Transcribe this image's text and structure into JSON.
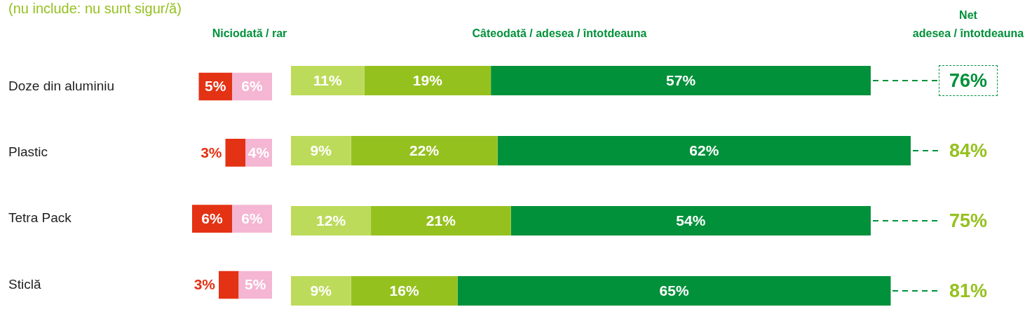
{
  "chart_data": [
    {
      "type": "bar",
      "orientation": "horizontal",
      "stacked": true,
      "title": "Niciodată / rar",
      "subtitle": "(nu include: nu sunt sigur/ă)",
      "categories": [
        "Doze din aluminiu",
        "Plastic",
        "Tetra Pack",
        "Sticlă"
      ],
      "series": [
        {
          "color": "#f4b6d2",
          "values": [
            6,
            4,
            6,
            5
          ],
          "value_labels": [
            "6%",
            "4%",
            "6%",
            "5%"
          ]
        },
        {
          "color": "#e43214",
          "values": [
            5,
            3,
            6,
            3
          ],
          "value_labels": [
            "5%",
            "3%",
            "6%",
            "3%"
          ]
        }
      ],
      "xlim": [
        12,
        0
      ],
      "tick_labels": "y"
    },
    {
      "type": "bar",
      "orientation": "horizontal",
      "stacked": true,
      "title": "Câteodată / adesea / întotdeauna",
      "categories": [
        null,
        null,
        null,
        null
      ],
      "series": [
        {
          "color": "#bddb5b",
          "values": [
            11,
            9,
            12,
            9
          ],
          "value_labels": [
            "11%",
            "9%",
            "12%",
            "9%"
          ]
        },
        {
          "color": "#95c11f",
          "values": [
            19,
            22,
            21,
            16
          ],
          "value_labels": [
            "19%",
            "22%",
            "21%",
            "16%"
          ]
        },
        {
          "color": "#00913a",
          "values": [
            57,
            62,
            54,
            65
          ],
          "value_labels": [
            "57%",
            "62%",
            "54%",
            "65%"
          ]
        }
      ],
      "xlim": [
        0,
        93
      ],
      "tick_labels": false
    },
    {
      "type": "other",
      "title": "Net",
      "subtitle": "adesea / întotdeauna",
      "annotations": [
        "76%",
        "84%",
        "75%",
        "81%"
      ]
    }
  ]
}
